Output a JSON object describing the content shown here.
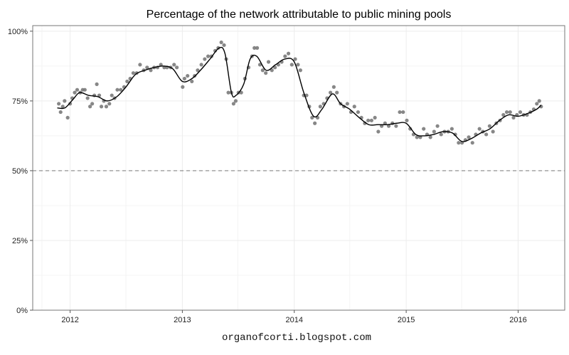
{
  "chart_data": {
    "type": "scatter",
    "title": "Percentage of the network attributable to public mining pools",
    "caption": "organofcorti.blogspot.com",
    "xlabel": "",
    "ylabel": "",
    "x_ticks": [
      "2012",
      "2013",
      "2014",
      "2015",
      "2016"
    ],
    "y_ticks": [
      "0%",
      "25%",
      "50%",
      "75%",
      "100%"
    ],
    "xlim": [
      "2011-09-01",
      "2016-06-01"
    ],
    "ylim": [
      0,
      1.02
    ],
    "grid": true,
    "reference_line": {
      "y": 0.5,
      "style": "dashed"
    },
    "colors": {
      "points": "#7a7a7a",
      "smooth": "#000000",
      "reference": "#888888",
      "grid": "#ececec",
      "border": "#777777"
    },
    "series": [
      {
        "type": "scatter",
        "points": [
          [
            "2011-11-25",
            0.74
          ],
          [
            "2011-12-01",
            0.71
          ],
          [
            "2011-12-08",
            0.73
          ],
          [
            "2011-12-14",
            0.75
          ],
          [
            "2011-12-24",
            0.69
          ],
          [
            "2012-01-01",
            0.74
          ],
          [
            "2012-01-08",
            0.76
          ],
          [
            "2012-01-16",
            0.78
          ],
          [
            "2012-01-24",
            0.79
          ],
          [
            "2012-02-03",
            0.78
          ],
          [
            "2012-02-11",
            0.79
          ],
          [
            "2012-02-18",
            0.79
          ],
          [
            "2012-02-27",
            0.76
          ],
          [
            "2012-03-06",
            0.73
          ],
          [
            "2012-03-13",
            0.74
          ],
          [
            "2012-03-20",
            0.77
          ],
          [
            "2012-03-28",
            0.81
          ],
          [
            "2012-04-05",
            0.77
          ],
          [
            "2012-04-12",
            0.73
          ],
          [
            "2012-04-20",
            0.75
          ],
          [
            "2012-04-28",
            0.73
          ],
          [
            "2012-05-08",
            0.74
          ],
          [
            "2012-05-16",
            0.77
          ],
          [
            "2012-05-25",
            0.76
          ],
          [
            "2012-06-03",
            0.79
          ],
          [
            "2012-06-14",
            0.79
          ],
          [
            "2012-06-25",
            0.8
          ],
          [
            "2012-07-05",
            0.82
          ],
          [
            "2012-07-15",
            0.83
          ],
          [
            "2012-07-25",
            0.85
          ],
          [
            "2012-08-05",
            0.85
          ],
          [
            "2012-08-16",
            0.88
          ],
          [
            "2012-08-28",
            0.86
          ],
          [
            "2012-09-08",
            0.87
          ],
          [
            "2012-09-20",
            0.86
          ],
          [
            "2012-10-01",
            0.87
          ],
          [
            "2012-10-12",
            0.87
          ],
          [
            "2012-10-23",
            0.88
          ],
          [
            "2012-11-03",
            0.87
          ],
          [
            "2012-11-12",
            0.87
          ],
          [
            "2012-11-24",
            0.87
          ],
          [
            "2012-12-05",
            0.88
          ],
          [
            "2012-12-14",
            0.87
          ],
          [
            "2013-01-02",
            0.8
          ],
          [
            "2013-01-08",
            0.83
          ],
          [
            "2013-01-18",
            0.84
          ],
          [
            "2013-02-01",
            0.82
          ],
          [
            "2013-02-10",
            0.84
          ],
          [
            "2013-02-20",
            0.86
          ],
          [
            "2013-03-04",
            0.88
          ],
          [
            "2013-03-15",
            0.9
          ],
          [
            "2013-03-26",
            0.91
          ],
          [
            "2013-04-06",
            0.91
          ],
          [
            "2013-04-18",
            0.93
          ],
          [
            "2013-04-28",
            0.94
          ],
          [
            "2013-05-08",
            0.96
          ],
          [
            "2013-05-17",
            0.95
          ],
          [
            "2013-05-24",
            0.9
          ],
          [
            "2013-05-31",
            0.78
          ],
          [
            "2013-06-10",
            0.78
          ],
          [
            "2013-06-17",
            0.74
          ],
          [
            "2013-06-24",
            0.75
          ],
          [
            "2013-07-03",
            0.78
          ],
          [
            "2013-07-12",
            0.78
          ],
          [
            "2013-07-24",
            0.83
          ],
          [
            "2013-08-05",
            0.87
          ],
          [
            "2013-08-16",
            0.91
          ],
          [
            "2013-08-24",
            0.94
          ],
          [
            "2013-09-02",
            0.94
          ],
          [
            "2013-09-11",
            0.88
          ],
          [
            "2013-09-20",
            0.86
          ],
          [
            "2013-09-30",
            0.85
          ],
          [
            "2013-10-09",
            0.89
          ],
          [
            "2013-10-20",
            0.86
          ],
          [
            "2013-10-30",
            0.87
          ],
          [
            "2013-11-10",
            0.88
          ],
          [
            "2013-11-21",
            0.89
          ],
          [
            "2013-12-02",
            0.91
          ],
          [
            "2013-12-13",
            0.92
          ],
          [
            "2013-12-24",
            0.88
          ],
          [
            "2014-01-04",
            0.9
          ],
          [
            "2014-01-13",
            0.88
          ],
          [
            "2014-01-21",
            0.86
          ],
          [
            "2014-02-01",
            0.77
          ],
          [
            "2014-02-10",
            0.77
          ],
          [
            "2014-02-19",
            0.73
          ],
          [
            "2014-02-28",
            0.69
          ],
          [
            "2014-03-09",
            0.67
          ],
          [
            "2014-03-18",
            0.69
          ],
          [
            "2014-03-27",
            0.73
          ],
          [
            "2014-04-07",
            0.74
          ],
          [
            "2014-04-18",
            0.76
          ],
          [
            "2014-04-29",
            0.78
          ],
          [
            "2014-05-10",
            0.8
          ],
          [
            "2014-05-20",
            0.78
          ],
          [
            "2014-06-01",
            0.74
          ],
          [
            "2014-06-12",
            0.73
          ],
          [
            "2014-06-23",
            0.74
          ],
          [
            "2014-07-05",
            0.71
          ],
          [
            "2014-07-16",
            0.73
          ],
          [
            "2014-07-28",
            0.71
          ],
          [
            "2014-08-08",
            0.69
          ],
          [
            "2014-08-19",
            0.67
          ],
          [
            "2014-08-30",
            0.68
          ],
          [
            "2014-09-10",
            0.68
          ],
          [
            "2014-09-21",
            0.69
          ],
          [
            "2014-10-02",
            0.64
          ],
          [
            "2014-10-13",
            0.66
          ],
          [
            "2014-10-24",
            0.67
          ],
          [
            "2014-11-05",
            0.66
          ],
          [
            "2014-11-17",
            0.67
          ],
          [
            "2014-11-29",
            0.66
          ],
          [
            "2014-12-11",
            0.71
          ],
          [
            "2014-12-22",
            0.71
          ],
          [
            "2015-01-03",
            0.68
          ],
          [
            "2015-01-14",
            0.65
          ],
          [
            "2015-01-25",
            0.63
          ],
          [
            "2015-02-05",
            0.62
          ],
          [
            "2015-02-16",
            0.62
          ],
          [
            "2015-02-27",
            0.65
          ],
          [
            "2015-03-10",
            0.63
          ],
          [
            "2015-03-21",
            0.62
          ],
          [
            "2015-04-02",
            0.64
          ],
          [
            "2015-04-13",
            0.66
          ],
          [
            "2015-04-25",
            0.63
          ],
          [
            "2015-05-06",
            0.64
          ],
          [
            "2015-05-18",
            0.64
          ],
          [
            "2015-05-30",
            0.65
          ],
          [
            "2015-06-10",
            0.63
          ],
          [
            "2015-06-21",
            0.6
          ],
          [
            "2015-07-02",
            0.6
          ],
          [
            "2015-07-13",
            0.61
          ],
          [
            "2015-07-24",
            0.62
          ],
          [
            "2015-08-05",
            0.6
          ],
          [
            "2015-08-16",
            0.63
          ],
          [
            "2015-08-28",
            0.65
          ],
          [
            "2015-09-08",
            0.64
          ],
          [
            "2015-09-19",
            0.63
          ],
          [
            "2015-09-30",
            0.66
          ],
          [
            "2015-10-11",
            0.64
          ],
          [
            "2015-10-22",
            0.67
          ],
          [
            "2015-11-03",
            0.68
          ],
          [
            "2015-11-14",
            0.7
          ],
          [
            "2015-11-25",
            0.71
          ],
          [
            "2015-12-06",
            0.71
          ],
          [
            "2015-12-17",
            0.69
          ],
          [
            "2015-12-28",
            0.7
          ],
          [
            "2016-01-08",
            0.71
          ],
          [
            "2016-01-19",
            0.7
          ],
          [
            "2016-01-30",
            0.7
          ],
          [
            "2016-02-10",
            0.71
          ],
          [
            "2016-02-21",
            0.72
          ],
          [
            "2016-03-02",
            0.74
          ],
          [
            "2016-03-10",
            0.75
          ],
          [
            "2016-03-16",
            0.73
          ]
        ]
      },
      {
        "type": "line",
        "smoothed": true,
        "points": [
          [
            "2011-11-20",
            0.725
          ],
          [
            "2011-12-15",
            0.725
          ],
          [
            "2012-01-10",
            0.755
          ],
          [
            "2012-02-01",
            0.78
          ],
          [
            "2012-03-01",
            0.77
          ],
          [
            "2012-04-01",
            0.765
          ],
          [
            "2012-05-01",
            0.75
          ],
          [
            "2012-06-01",
            0.765
          ],
          [
            "2012-07-01",
            0.8
          ],
          [
            "2012-08-01",
            0.845
          ],
          [
            "2012-09-01",
            0.86
          ],
          [
            "2012-10-01",
            0.87
          ],
          [
            "2012-11-01",
            0.875
          ],
          [
            "2012-12-01",
            0.865
          ],
          [
            "2013-01-01",
            0.82
          ],
          [
            "2013-02-01",
            0.83
          ],
          [
            "2013-03-01",
            0.86
          ],
          [
            "2013-04-01",
            0.9
          ],
          [
            "2013-05-01",
            0.94
          ],
          [
            "2013-05-20",
            0.92
          ],
          [
            "2013-06-10",
            0.78
          ],
          [
            "2013-06-25",
            0.77
          ],
          [
            "2013-07-20",
            0.81
          ],
          [
            "2013-08-10",
            0.9
          ],
          [
            "2013-09-01",
            0.91
          ],
          [
            "2013-10-01",
            0.86
          ],
          [
            "2013-11-01",
            0.88
          ],
          [
            "2013-12-01",
            0.9
          ],
          [
            "2014-01-01",
            0.89
          ],
          [
            "2014-02-01",
            0.78
          ],
          [
            "2014-03-05",
            0.695
          ],
          [
            "2014-04-01",
            0.72
          ],
          [
            "2014-05-05",
            0.775
          ],
          [
            "2014-06-01",
            0.74
          ],
          [
            "2014-07-01",
            0.72
          ],
          [
            "2014-08-01",
            0.69
          ],
          [
            "2014-09-01",
            0.665
          ],
          [
            "2014-10-01",
            0.665
          ],
          [
            "2014-11-01",
            0.665
          ],
          [
            "2014-12-01",
            0.67
          ],
          [
            "2015-01-01",
            0.67
          ],
          [
            "2015-02-01",
            0.63
          ],
          [
            "2015-03-01",
            0.625
          ],
          [
            "2015-04-01",
            0.63
          ],
          [
            "2015-05-01",
            0.64
          ],
          [
            "2015-06-01",
            0.635
          ],
          [
            "2015-07-01",
            0.605
          ],
          [
            "2015-08-01",
            0.615
          ],
          [
            "2015-09-01",
            0.635
          ],
          [
            "2015-10-01",
            0.65
          ],
          [
            "2015-11-01",
            0.68
          ],
          [
            "2015-12-01",
            0.7
          ],
          [
            "2016-01-01",
            0.695
          ],
          [
            "2016-02-01",
            0.705
          ],
          [
            "2016-03-01",
            0.72
          ],
          [
            "2016-03-16",
            0.735
          ]
        ]
      }
    ]
  }
}
